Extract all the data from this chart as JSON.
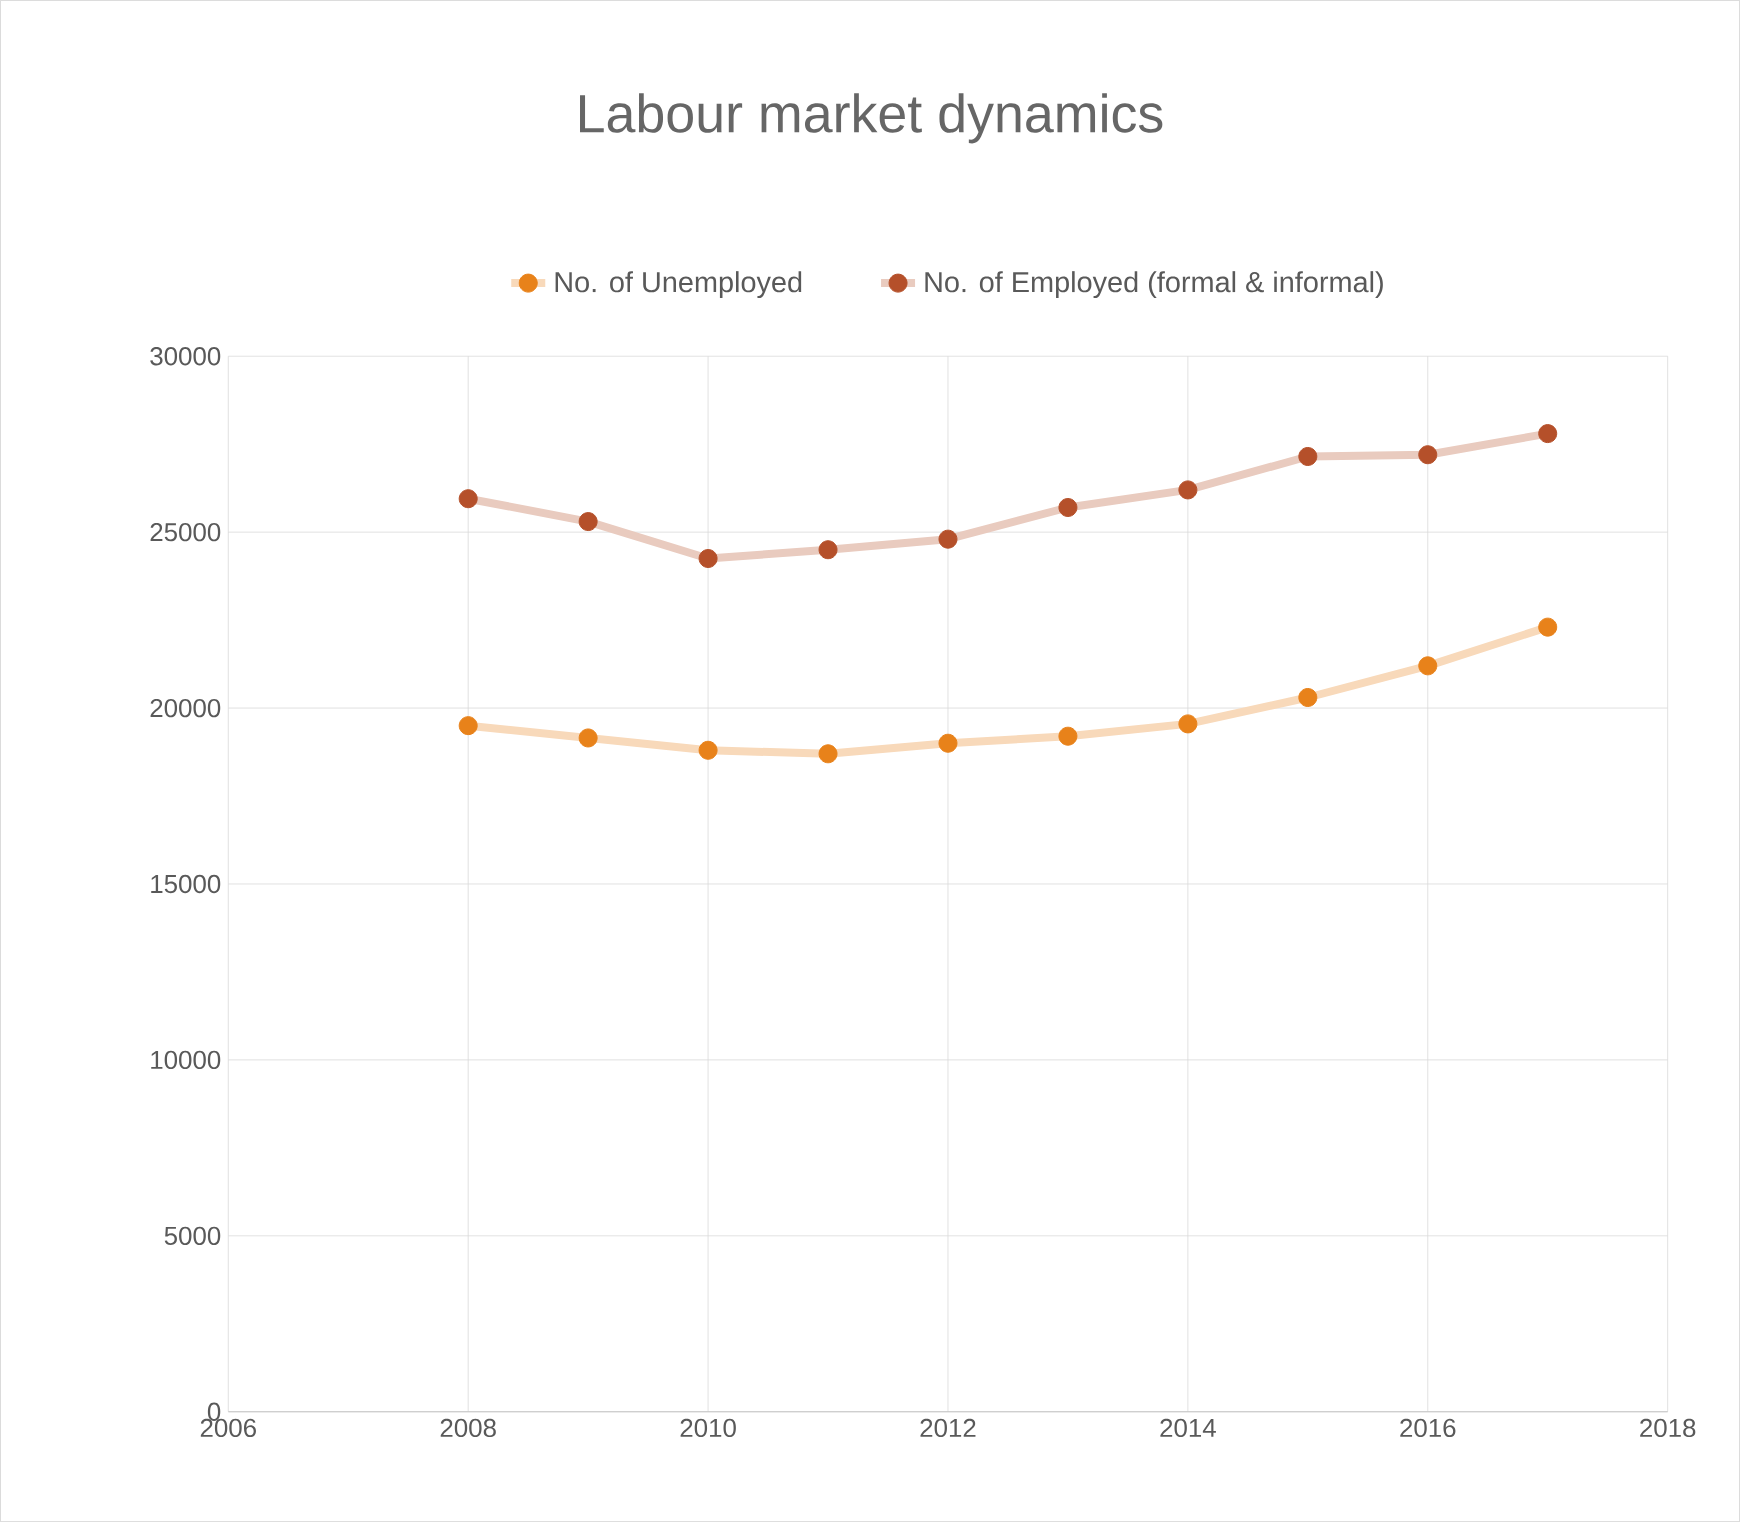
{
  "chart_data": {
    "type": "line",
    "title": "Labour market dynamics",
    "x": [
      2008,
      2009,
      2010,
      2011,
      2012,
      2013,
      2014,
      2015,
      2016,
      2017
    ],
    "series": [
      {
        "name": "No. of Unemployed",
        "color": "#e8821a",
        "values": [
          19500,
          19150,
          18800,
          18700,
          19000,
          19200,
          19550,
          20300,
          21200,
          22300
        ]
      },
      {
        "name": "No. of Employed (formal & informal)",
        "color": "#b5502a",
        "values": [
          25950,
          25300,
          24250,
          24500,
          24800,
          25700,
          26200,
          27150,
          27200,
          27800
        ]
      }
    ],
    "xlim": [
      2006,
      2018
    ],
    "xticks": [
      2006,
      2008,
      2010,
      2012,
      2014,
      2016,
      2018
    ],
    "ylim": [
      0,
      30000
    ],
    "yticks": [
      0,
      5000,
      10000,
      15000,
      20000,
      25000,
      30000
    ],
    "grid": true,
    "legend": "top",
    "marker": "circle",
    "line_style": "solid"
  }
}
